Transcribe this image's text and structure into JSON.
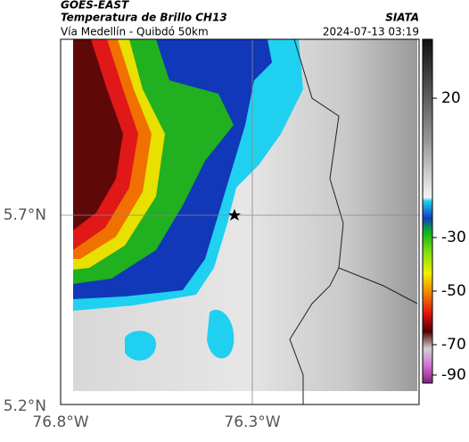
{
  "header": {
    "source": "GOES-EAST",
    "title": "Temperatura de Brillo CH13",
    "subtitle": "Vía Medellín - Quibdó 50km",
    "agency": "SIATA",
    "timestamp": "2024-07-13 03:19"
  },
  "map": {
    "lat_labels": [
      "5.7°N",
      "5.2°N"
    ],
    "lon_labels": [
      "76.8°W",
      "76.3°W"
    ]
  },
  "colorbar": {
    "ticks": [
      20,
      -30,
      -50,
      -70,
      -90
    ]
  }
}
